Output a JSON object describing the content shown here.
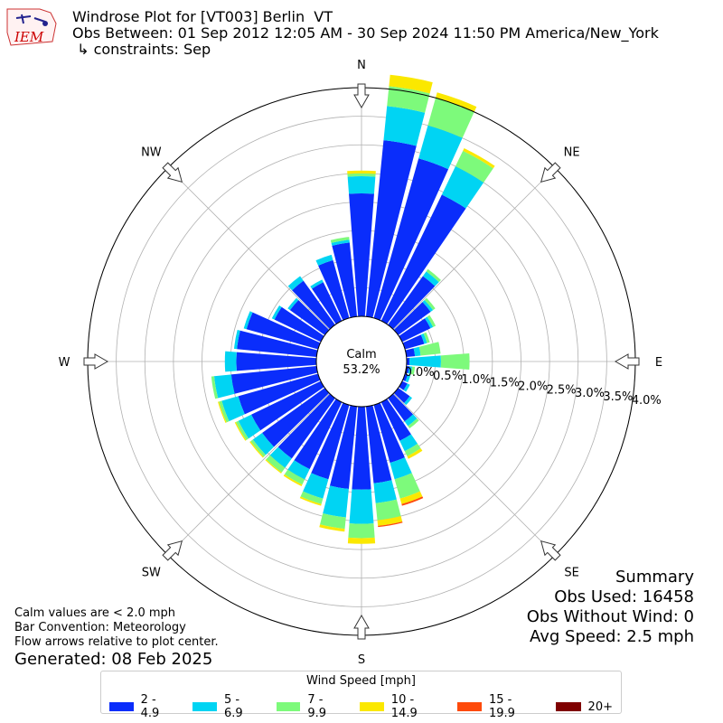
{
  "header": {
    "title_line1": "Windrose Plot for [VT003] Berlin  VT",
    "title_line2": "Obs Between: 01 Sep 2012 12:05 AM - 30 Sep 2024 11:50 PM America/New_York",
    "title_line3": " ↳ constraints: Sep",
    "logo_text": "IEM"
  },
  "notes": {
    "line1": "Calm values are < 2.0 mph",
    "line2": "Bar Convention: Meteorology",
    "line3": "Flow arrows relative to plot center.",
    "generated": "Generated: 08 Feb 2025"
  },
  "summary": {
    "title": "Summary",
    "obs_used": "Obs Used: 16458",
    "obs_without_wind": "Obs Without Wind: 0",
    "avg_speed": "Avg Speed: 2.5 mph"
  },
  "legend": {
    "title": "Wind Speed [mph]",
    "bins": [
      {
        "label": "2 - 4.9",
        "color": "#0a2dfb"
      },
      {
        "label": "5 - 6.9",
        "color": "#00d4f3"
      },
      {
        "label": "7 - 9.9",
        "color": "#7dfa7b"
      },
      {
        "label": "10 - 14.9",
        "color": "#fbe800"
      },
      {
        "label": "15 - 19.9",
        "color": "#fe4a0b"
      },
      {
        "label": "20+",
        "color": "#7f0000"
      }
    ]
  },
  "chart_data": {
    "type": "windrose",
    "calm_label": "Calm",
    "calm_value": "53.2%",
    "radial_ticks": [
      "0.0%",
      "0.5%",
      "1.0%",
      "1.5%",
      "2.0%",
      "2.5%",
      "3.0%",
      "3.5%",
      "4.0%"
    ],
    "radial_max": 4.0,
    "direction_labels": [
      "N",
      "NE",
      "E",
      "SE",
      "S",
      "SW",
      "W",
      "NW"
    ],
    "directions_deg": [
      0,
      10,
      20,
      30,
      40,
      50,
      60,
      70,
      80,
      90,
      100,
      110,
      120,
      130,
      140,
      150,
      160,
      170,
      180,
      190,
      200,
      210,
      220,
      230,
      240,
      250,
      260,
      270,
      280,
      290,
      300,
      310,
      320,
      330,
      340,
      350
    ],
    "series": [
      {
        "name": "2 - 4.9",
        "values": [
          2.15,
          3.1,
          2.9,
          2.45,
          1.05,
          0.7,
          0.55,
          0.35,
          0.15,
          0.05,
          0.05,
          0.05,
          0.1,
          0.25,
          0.5,
          0.75,
          1.05,
          1.35,
          1.45,
          1.45,
          1.35,
          1.3,
          1.3,
          1.35,
          1.35,
          1.45,
          1.5,
          1.4,
          1.4,
          1.3,
          0.9,
          0.75,
          0.95,
          0.75,
          1.05,
          1.3
        ]
      },
      {
        "name": "5 - 6.9",
        "values": [
          0.3,
          0.6,
          0.6,
          0.55,
          0.1,
          0.05,
          0.05,
          0.05,
          0.1,
          0.55,
          0.05,
          0.05,
          0.05,
          0.05,
          0.1,
          0.2,
          0.3,
          0.35,
          0.6,
          0.5,
          0.35,
          0.2,
          0.2,
          0.2,
          0.25,
          0.3,
          0.3,
          0.2,
          0.05,
          0.05,
          0.05,
          0.05,
          0.1,
          0.05,
          0.1,
          0.05
        ]
      },
      {
        "name": "7 - 9.9",
        "values": [
          0.05,
          0.35,
          0.5,
          0.3,
          0.05,
          0.05,
          0.05,
          0.05,
          0.35,
          0.5,
          0.05,
          0.0,
          0.0,
          0.0,
          0.05,
          0.1,
          0.35,
          0.3,
          0.25,
          0.2,
          0.1,
          0.1,
          0.1,
          0.05,
          0.05,
          0.05,
          0.05,
          0.0,
          0.0,
          0.0,
          0.0,
          0.0,
          0.0,
          0.0,
          0.0,
          0.05
        ]
      },
      {
        "name": "10 - 14.9",
        "values": [
          0.05,
          0.2,
          0.1,
          0.05,
          0.0,
          0.0,
          0.0,
          0.0,
          0.0,
          0.0,
          0.0,
          0.0,
          0.0,
          0.0,
          0.0,
          0.05,
          0.1,
          0.1,
          0.1,
          0.05,
          0.03,
          0.03,
          0.02,
          0.02,
          0.02,
          0.02,
          0.0,
          0.0,
          0.0,
          0.0,
          0.0,
          0.0,
          0.0,
          0.0,
          0.0,
          0.0
        ]
      },
      {
        "name": "15 - 19.9",
        "values": [
          0,
          0,
          0,
          0,
          0,
          0,
          0,
          0,
          0,
          0,
          0,
          0,
          0,
          0,
          0,
          0,
          0.03,
          0.02,
          0.0,
          0,
          0,
          0,
          0,
          0,
          0,
          0,
          0,
          0,
          0,
          0,
          0,
          0,
          0,
          0,
          0,
          0
        ]
      },
      {
        "name": "20+",
        "values": [
          0,
          0,
          0,
          0,
          0,
          0,
          0,
          0,
          0,
          0,
          0,
          0,
          0,
          0,
          0,
          0,
          0,
          0,
          0,
          0,
          0,
          0,
          0,
          0,
          0,
          0,
          0,
          0,
          0,
          0,
          0,
          0,
          0,
          0,
          0,
          0
        ]
      }
    ]
  }
}
